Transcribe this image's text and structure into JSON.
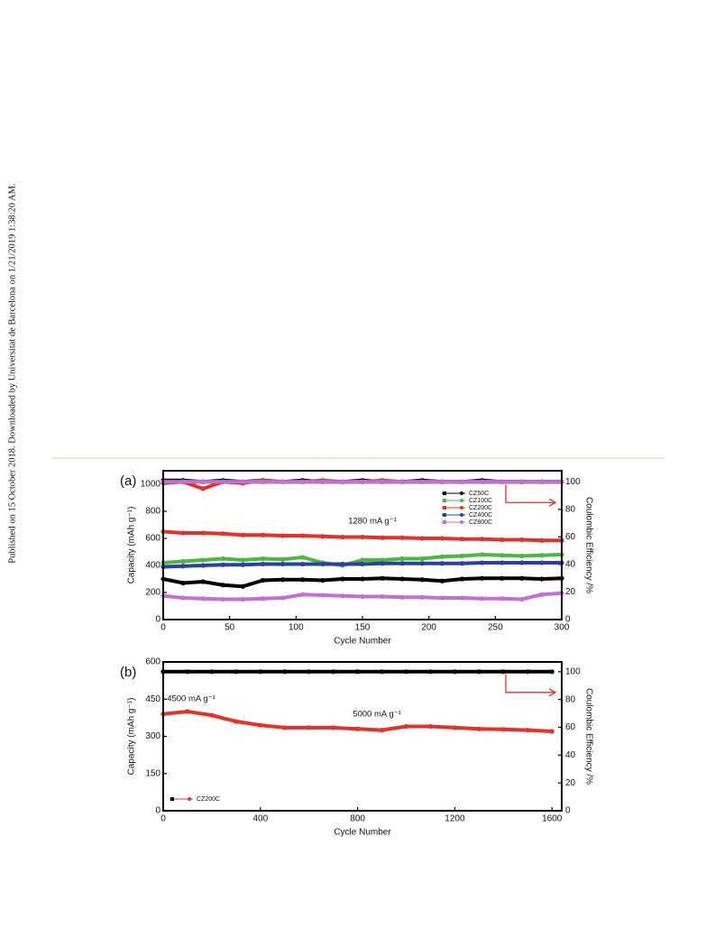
{
  "side_note": "Published on 15 October 2018. Downloaded by Universitat de Barcelona on 1/21/2019 1:38:20 AM.",
  "chart_data": [
    {
      "type": "line",
      "panel_label": "(a)",
      "xlabel": "Cycle Number",
      "ylabel": "Capacity (mAh g⁻¹)",
      "y2label": "Coulombic Efficiency /%",
      "annotations": [
        "1280 mA g⁻¹"
      ],
      "legend": "upper right",
      "xlim": [
        0,
        300
      ],
      "xticks": [
        0,
        50,
        100,
        150,
        200,
        250,
        300
      ],
      "ylim": [
        0,
        1100
      ],
      "yticks": [
        0,
        200,
        400,
        600,
        800,
        1000
      ],
      "y2lim": [
        0,
        108
      ],
      "y2ticks": [
        0,
        20,
        40,
        60,
        80,
        100
      ],
      "x": [
        0,
        15,
        30,
        45,
        60,
        75,
        90,
        105,
        120,
        135,
        150,
        165,
        180,
        195,
        210,
        225,
        240,
        255,
        270,
        285,
        300
      ],
      "series": [
        {
          "name": "CZ50C",
          "color": "#000000",
          "values": [
            300,
            270,
            280,
            255,
            245,
            290,
            295,
            295,
            290,
            300,
            300,
            305,
            300,
            295,
            285,
            300,
            305,
            305,
            305,
            300,
            305
          ],
          "efficiency": [
            101,
            101,
            100,
            101,
            100,
            101,
            100,
            101,
            100,
            100,
            101,
            100,
            100,
            101,
            100,
            100,
            101,
            100,
            100,
            100,
            100
          ]
        },
        {
          "name": "CZ100C",
          "color": "#4cb83c",
          "values": [
            420,
            430,
            440,
            450,
            440,
            450,
            445,
            460,
            420,
            400,
            440,
            440,
            450,
            450,
            465,
            470,
            480,
            475,
            470,
            475,
            480
          ],
          "efficiency": [
            100,
            100,
            100,
            100,
            100,
            100,
            100,
            100,
            100,
            100,
            100,
            100,
            100,
            100,
            100,
            100,
            100,
            100,
            100,
            100,
            100
          ]
        },
        {
          "name": "CZ200C",
          "color": "#e8302a",
          "values": [
            650,
            640,
            640,
            635,
            625,
            625,
            620,
            620,
            615,
            610,
            610,
            605,
            605,
            600,
            600,
            595,
            595,
            590,
            590,
            585,
            585
          ],
          "efficiency": [
            99,
            100,
            95,
            100,
            99,
            101,
            100,
            100,
            101,
            100,
            100,
            101,
            100,
            100,
            100,
            100,
            100,
            100,
            100,
            100,
            100
          ]
        },
        {
          "name": "CZ400C",
          "color": "#2b3fa3",
          "values": [
            390,
            395,
            400,
            405,
            405,
            410,
            410,
            410,
            410,
            410,
            410,
            415,
            415,
            415,
            415,
            415,
            420,
            420,
            420,
            420,
            420
          ],
          "efficiency": [
            100,
            100,
            100,
            100,
            100,
            100,
            100,
            100,
            100,
            100,
            100,
            100,
            100,
            100,
            100,
            100,
            100,
            100,
            100,
            100,
            100
          ]
        },
        {
          "name": "CZ800C",
          "color": "#c46fd2",
          "values": [
            175,
            160,
            155,
            150,
            150,
            155,
            160,
            185,
            180,
            175,
            170,
            170,
            165,
            165,
            160,
            160,
            155,
            155,
            150,
            185,
            195
          ],
          "efficiency": [
            100,
            100,
            100,
            100,
            100,
            100,
            100,
            100,
            100,
            100,
            100,
            100,
            100,
            100,
            100,
            100,
            100,
            100,
            100,
            100,
            100
          ]
        }
      ]
    },
    {
      "type": "line",
      "panel_label": "(b)",
      "xlabel": "Cycle Number",
      "ylabel": "Capacity (mAh g⁻¹)",
      "y2label": "Coulombic Efficiency /%",
      "annotations": [
        "4500 mA g⁻¹",
        "5000 mA g⁻¹"
      ],
      "legend": "lower left",
      "xlim": [
        0,
        1640
      ],
      "xticks": [
        0,
        400,
        800,
        1200,
        1600
      ],
      "ylim": [
        0,
        600
      ],
      "yticks": [
        0,
        150,
        300,
        450,
        600
      ],
      "y2lim": [
        0,
        107
      ],
      "y2ticks": [
        0,
        20,
        40,
        60,
        80,
        100
      ],
      "x": [
        0,
        100,
        200,
        300,
        400,
        500,
        600,
        700,
        800,
        900,
        1000,
        1100,
        1200,
        1300,
        1400,
        1500,
        1600
      ],
      "series": [
        {
          "name": "CZ200C",
          "color": "#e8302a",
          "values": [
            390,
            400,
            385,
            360,
            345,
            335,
            335,
            335,
            330,
            325,
            340,
            340,
            335,
            330,
            328,
            325,
            320
          ],
          "efficiency": [
            100,
            100,
            100,
            100,
            100,
            100,
            100,
            100,
            100,
            100,
            100,
            100,
            100,
            100,
            100,
            100,
            100
          ]
        }
      ]
    }
  ]
}
